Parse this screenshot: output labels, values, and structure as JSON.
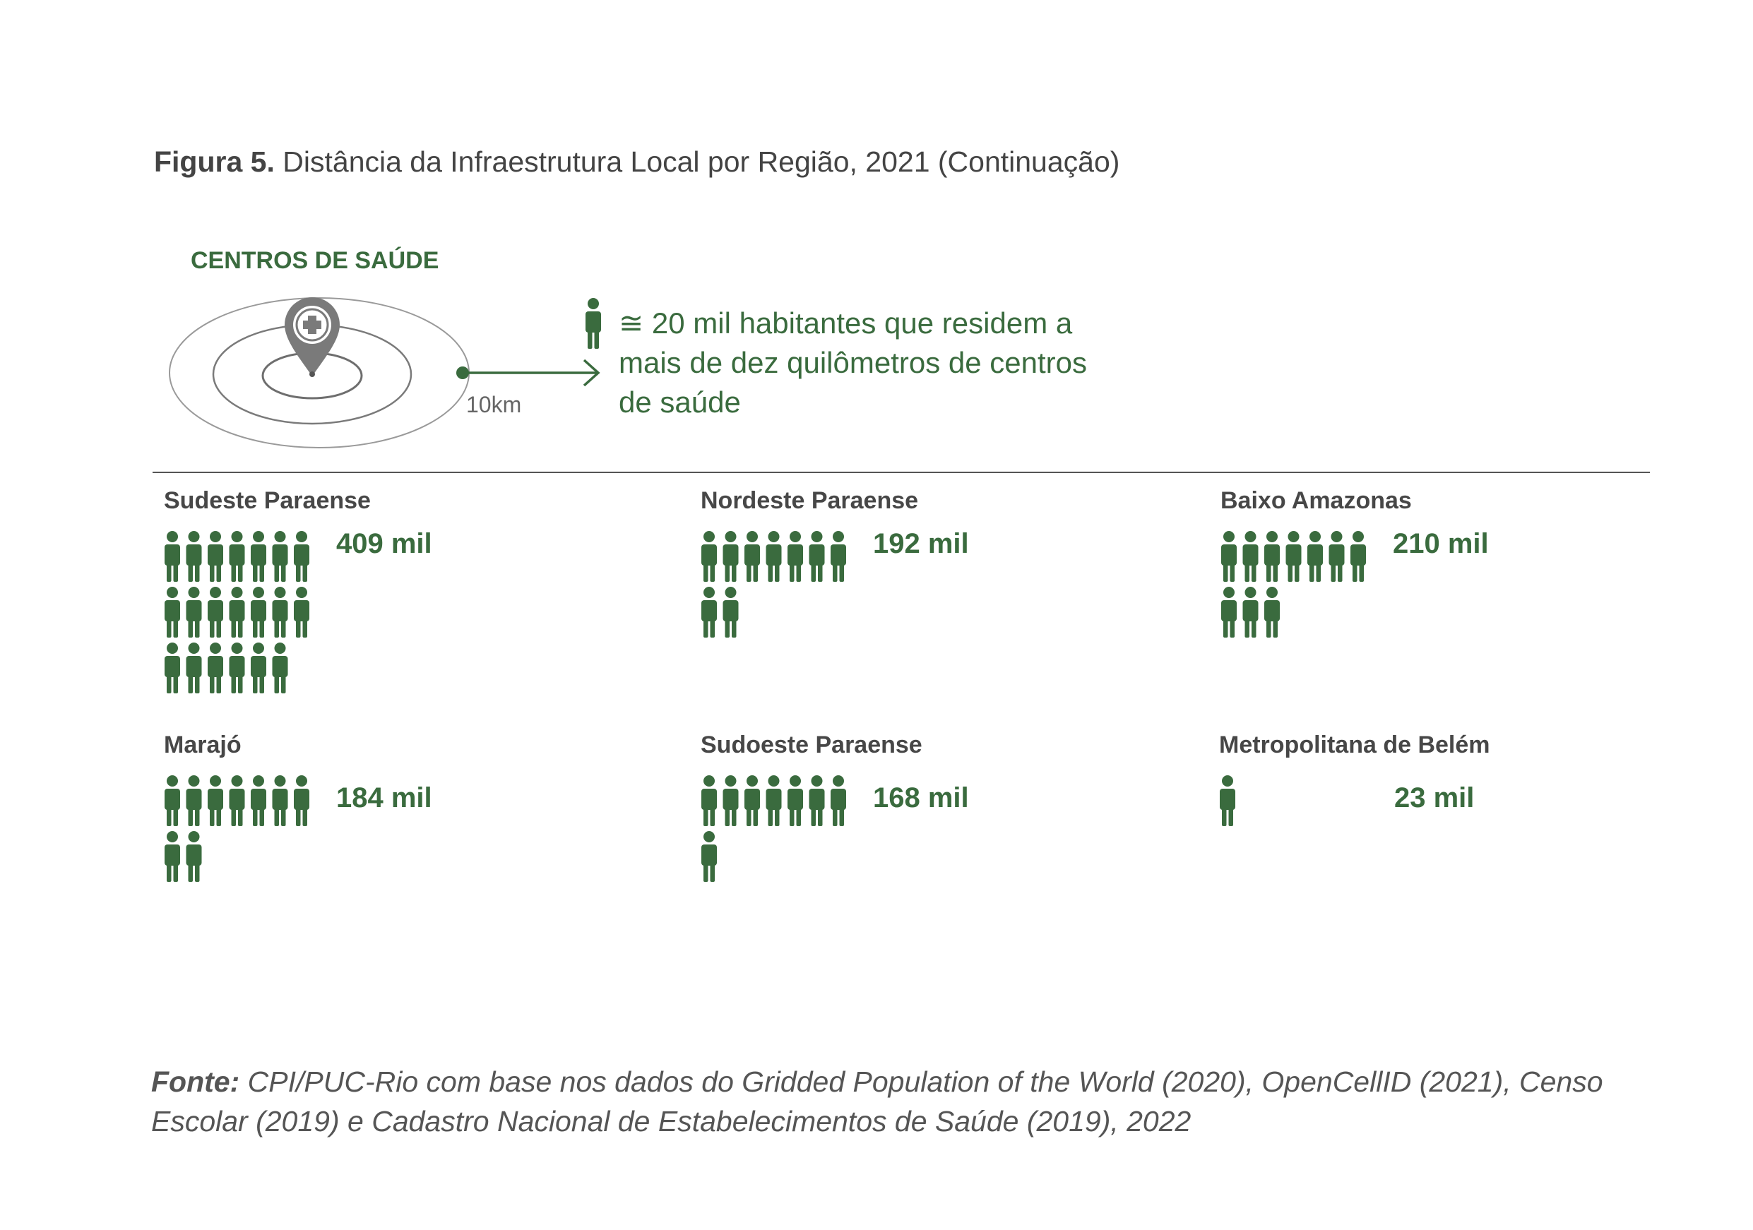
{
  "title": {
    "label": "Figura 5.",
    "text": "Distância da Infraestrutura Local por Região, 2021 (Continuação)"
  },
  "legend": {
    "heading": "CENTROS DE SAÚDE",
    "distance_label": "10km",
    "text": "≅ 20 mil habitantes que residem a mais de dez quilômetros de centros de saúde",
    "icons": [
      "location-pin-icon",
      "medical-cross-icon",
      "person-icon",
      "arrow-right-icon"
    ]
  },
  "colors": {
    "accent_green": "#3a6b3e",
    "pin_gray": "#7a7a7a",
    "ring_gray": "#9a9a9a"
  },
  "chart_data": {
    "type": "pictogram",
    "unit_per_icon": "≅ 20 mil habitantes",
    "categories": [
      "Sudeste Paraense",
      "Nordeste Paraense",
      "Baixo Amazonas",
      "Marajó",
      "Sudoeste Paraense",
      "Metropolitana de Belém"
    ],
    "regions": [
      {
        "name": "Sudeste Paraense",
        "value_label": "409 mil",
        "icons": 20
      },
      {
        "name": "Nordeste Paraense",
        "value_label": "192 mil",
        "icons": 9
      },
      {
        "name": "Baixo Amazonas",
        "value_label": "210 mil",
        "icons": 10
      },
      {
        "name": "Marajó",
        "value_label": "184 mil",
        "icons": 9
      },
      {
        "name": "Sudoeste Paraense",
        "value_label": "168 mil",
        "icons": 8
      },
      {
        "name": "Metropolitana de Belém",
        "value_label": "23 mil",
        "icons": 1
      }
    ]
  },
  "source": {
    "label": "Fonte:",
    "text": "CPI/PUC-Rio com base nos dados do Gridded Population of the World (2020), OpenCellID (2021), Censo Escolar (2019) e Cadastro Nacional de Estabelecimentos de Saúde (2019), 2022"
  }
}
